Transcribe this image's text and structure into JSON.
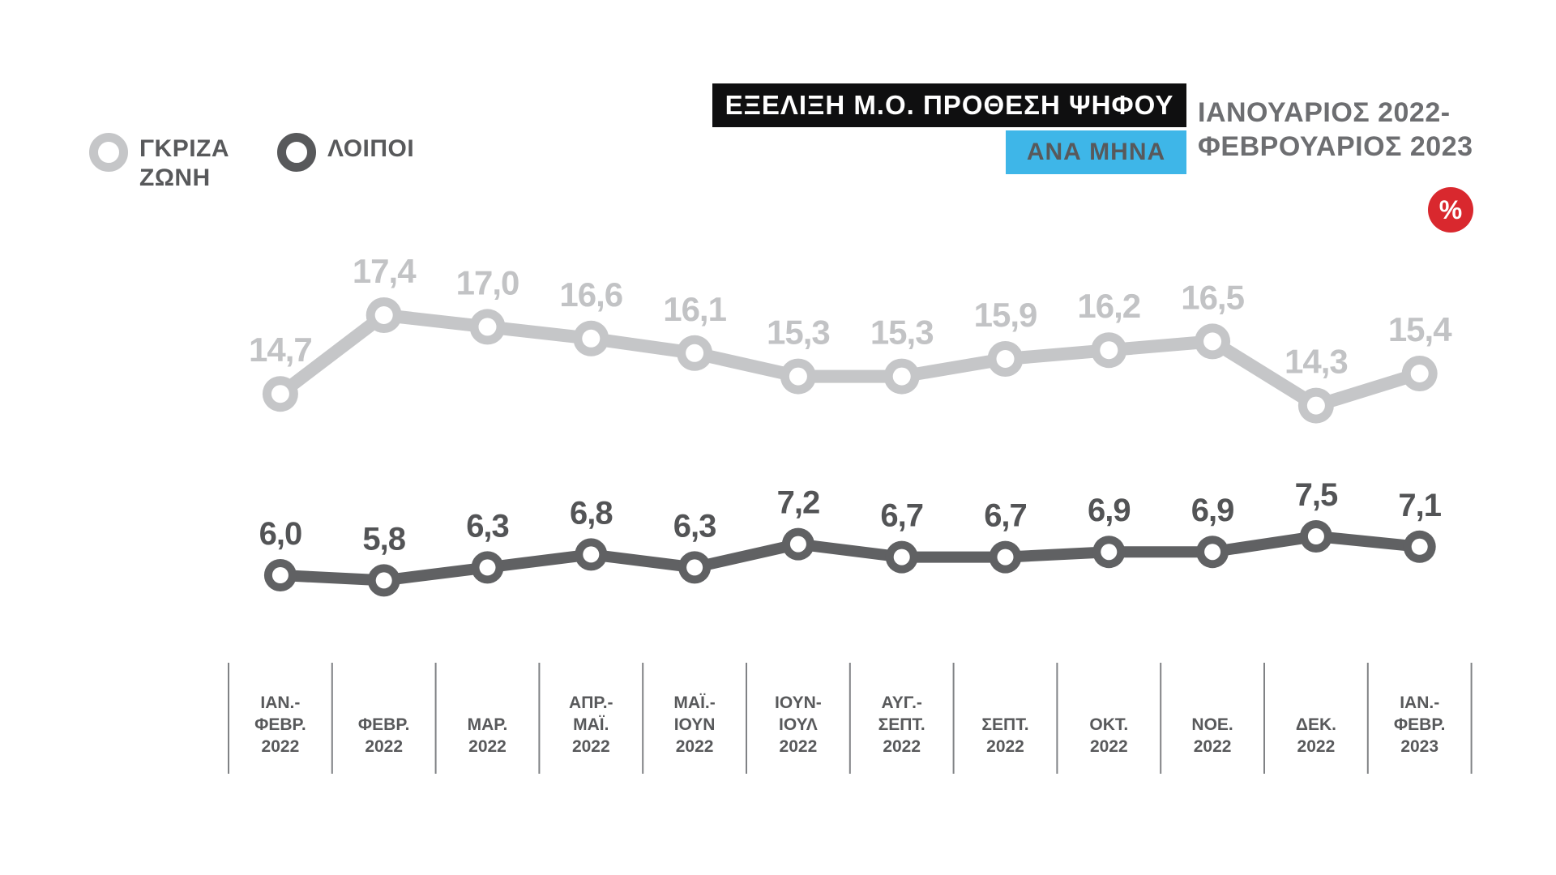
{
  "header": {
    "title": "ΕΞΕΛΙΞΗ Μ.Ο. ΠΡΟΘΕΣΗ ΨΗΦΟΥ",
    "subtitle_badge": "ΑΝΑ ΜΗΝΑ",
    "period_line1": "ΙΑΝΟΥΑΡΙΟΣ 2022-",
    "period_line2": "ΦΕΒΡΟΥΑΡΙΟΣ 2023",
    "percent_badge": "%"
  },
  "legend": {
    "items": [
      {
        "label_line1": "ΓΚΡΙΖΑ",
        "label_line2": "ΖΩΝΗ",
        "color": "#c5c6c8"
      },
      {
        "label_line1": "ΛΟΙΠΟΙ",
        "label_line2": "",
        "color": "#58595b"
      }
    ]
  },
  "colors": {
    "accent_cyan": "#3eb6e8",
    "badge_red": "#d9282e",
    "title_bg": "#0f0f10",
    "gray_series": "#c5c6c8",
    "dark_series": "#606163",
    "dark_label": "#535456",
    "legend_text": "#58595b",
    "axis_text": "#58595b",
    "period_text": "#6d6e71",
    "divider": "#808285"
  },
  "chart_data": {
    "type": "line",
    "title": "ΕΞΕΛΙΞΗ Μ.Ο. ΠΡΟΘΕΣΗ ΨΗΦΟΥ ΑΝΑ ΜΗΝΑ, ΙΑΝΟΥΑΡΙΟΣ 2022-ΦΕΒΡΟΥΑΡΙΟΣ 2023",
    "unit": "%",
    "value_format": "comma-decimal",
    "grid": "vertical-dividers-only",
    "legend_position": "top-left",
    "categories": [
      [
        "ΙΑΝ.-",
        "ΦΕΒΡ.",
        "2022"
      ],
      [
        "ΦΕΒΡ.",
        "2022"
      ],
      [
        "ΜΑΡ.",
        "2022"
      ],
      [
        "ΑΠΡ.-",
        "ΜΑΪ.",
        "2022"
      ],
      [
        "ΜΑΪ.-",
        "ΙΟΥΝ",
        "2022"
      ],
      [
        "ΙΟΥΝ-",
        "ΙΟΥΛ",
        "2022"
      ],
      [
        "ΑΥΓ.-",
        "ΣΕΠΤ.",
        "2022"
      ],
      [
        "ΣΕΠΤ.",
        "2022"
      ],
      [
        "ΟΚΤ.",
        "2022"
      ],
      [
        "ΝΟΕ.",
        "2022"
      ],
      [
        "ΔΕΚ.",
        "2022"
      ],
      [
        "ΙΑΝ.-",
        "ΦΕΒΡ.",
        "2023"
      ]
    ],
    "series": [
      {
        "name": "ΓΚΡΙΖΑ ΖΩΝΗ",
        "color": "#c5c6c8",
        "label_color": "#c2c3c5",
        "values": [
          14.7,
          17.4,
          17.0,
          16.6,
          16.1,
          15.3,
          15.3,
          15.9,
          16.2,
          16.5,
          14.3,
          15.4
        ],
        "display_values": [
          "14,7",
          "17,4",
          "17,0",
          "16,6",
          "16,1",
          "15,3",
          "15,3",
          "15,9",
          "16,2",
          "16,5",
          "14,3",
          "15,4"
        ]
      },
      {
        "name": "ΛΟΙΠΟΙ",
        "color": "#606163",
        "label_color": "#535456",
        "values": [
          6.0,
          5.8,
          6.3,
          6.8,
          6.3,
          7.2,
          6.7,
          6.7,
          6.9,
          6.9,
          7.5,
          7.1
        ],
        "display_values": [
          "6,0",
          "5,8",
          "6,3",
          "6,8",
          "6,3",
          "7,2",
          "6,7",
          "6,7",
          "6,9",
          "6,9",
          "7,5",
          "7,1"
        ]
      }
    ]
  }
}
